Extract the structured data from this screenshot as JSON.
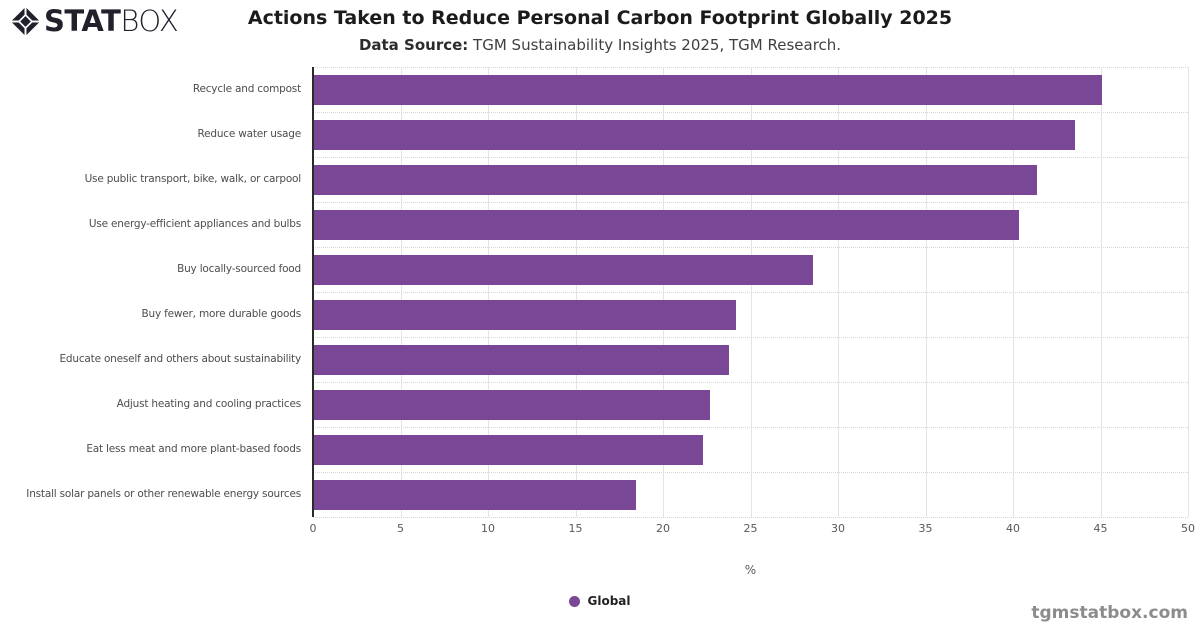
{
  "logo": {
    "stat": "STAT",
    "box": "BOX",
    "icon": "diamond-icon"
  },
  "header": {
    "title": "Actions Taken to Reduce Personal Carbon Footprint Globally 2025",
    "subtitle_label": "Data Source:",
    "subtitle_text": " TGM Sustainability Insights 2025, TGM Research."
  },
  "chart_data": {
    "type": "bar",
    "orientation": "horizontal",
    "title": "Actions Taken to Reduce Personal Carbon Footprint Globally 2025",
    "categories": [
      "Recycle and compost",
      "Reduce water usage",
      "Use public transport, bike, walk, or carpool",
      "Use energy-efficient appliances and bulbs",
      "Buy locally-sourced food",
      "Buy fewer, more durable goods",
      "Educate oneself and others about sustainability",
      "Adjust heating and cooling practices",
      "Eat less meat and more plant-based foods",
      "Install solar panels or other renewable energy sources"
    ],
    "series": [
      {
        "name": "Global",
        "values": [
          45.0,
          43.5,
          41.3,
          40.3,
          28.5,
          24.1,
          23.7,
          22.6,
          22.2,
          18.4
        ]
      }
    ],
    "xlabel": "%",
    "ylabel": "",
    "xlim": [
      0,
      50
    ],
    "xticks": [
      0,
      5,
      10,
      15,
      20,
      25,
      30,
      35,
      40,
      45,
      50
    ],
    "grid": {
      "vertical": "solid",
      "horizontal": "dotted"
    },
    "bar_color": "#7A4696",
    "legend": {
      "position": "bottom-center",
      "entries": [
        {
          "label": "Global",
          "color": "#7A4696"
        }
      ]
    }
  },
  "footer": {
    "watermark": "tgmstatbox.com"
  }
}
